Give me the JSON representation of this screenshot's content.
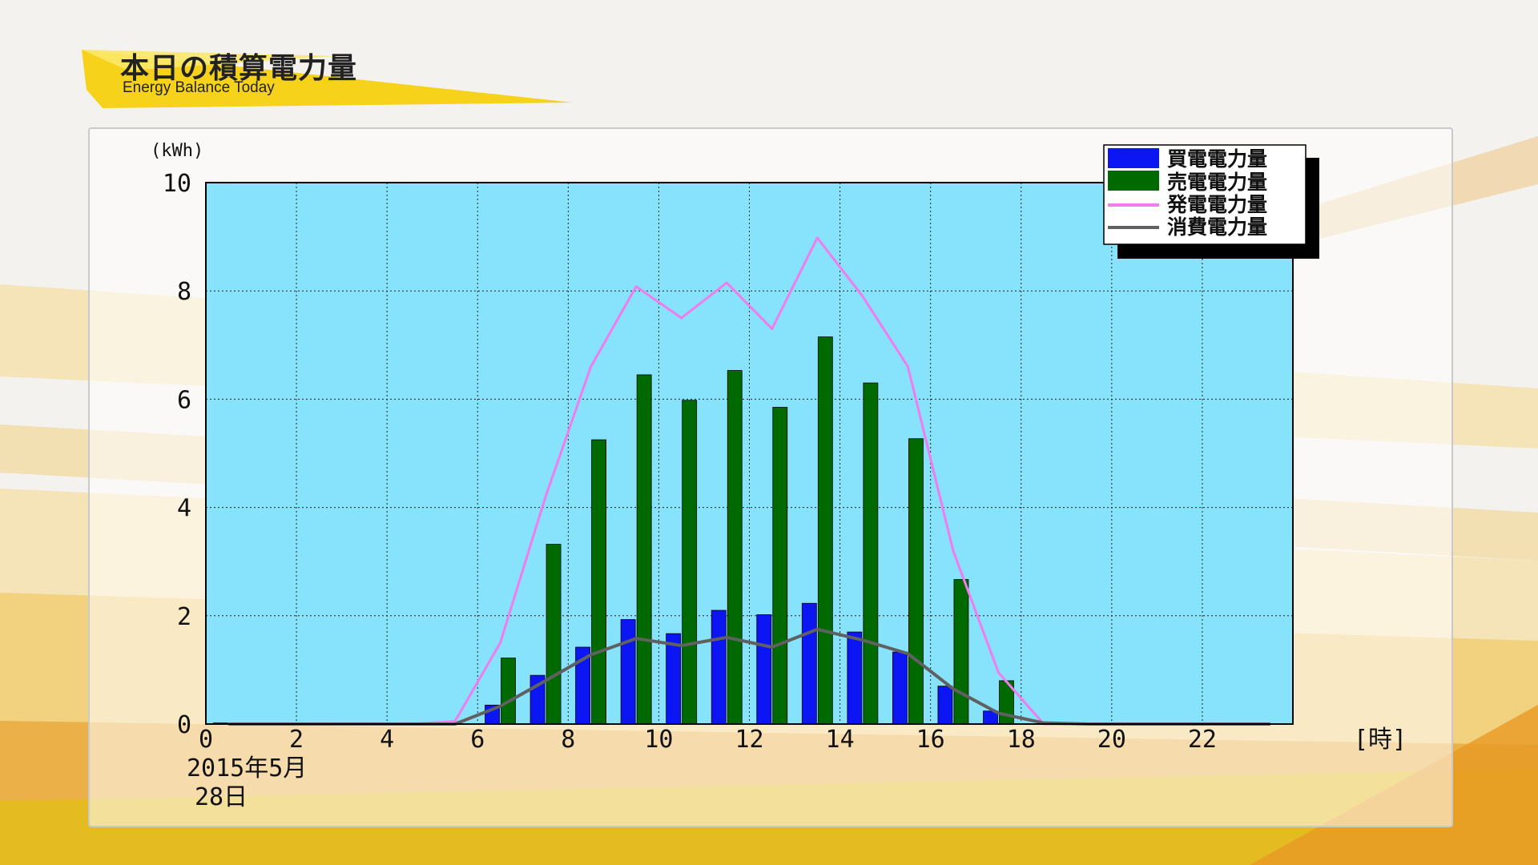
{
  "header": {
    "title": "本日の積算電力量",
    "subtitle": "Energy Balance Today"
  },
  "colors": {
    "plot_bg": "#87e2fb",
    "buy": "#0b16f3",
    "sell": "#006a00",
    "generation": "#f07cf0",
    "consumption": "#606060",
    "accent_yellow": "#f7d21a",
    "accent_orange": "#e9a23b"
  },
  "chart_data": {
    "type": "bar",
    "title": "本日の積算電力量",
    "unit_label": "(kWh)",
    "xlabel": "[時]",
    "date_line1": "2015年5月",
    "date_line2": "28日",
    "ylim": [
      0,
      10
    ],
    "xlim": [
      0,
      24
    ],
    "yticks": [
      0,
      2,
      4,
      6,
      8,
      10
    ],
    "xticks": [
      0,
      2,
      4,
      6,
      8,
      10,
      12,
      14,
      16,
      18,
      20,
      22
    ],
    "grid": true,
    "legend_position": "top-right",
    "x": [
      0,
      1,
      2,
      3,
      4,
      5,
      6,
      7,
      8,
      9,
      10,
      11,
      12,
      13,
      14,
      15,
      16,
      17,
      18,
      19,
      20,
      21,
      22,
      23
    ],
    "series": [
      {
        "name": "買電電力量",
        "kind": "bar",
        "color_key": "buy",
        "values": [
          0.02,
          0,
          0,
          0,
          0,
          0,
          0.35,
          0.9,
          1.42,
          1.93,
          1.67,
          2.1,
          2.02,
          2.23,
          1.7,
          1.33,
          0.7,
          0.24,
          0,
          0,
          0,
          0,
          0,
          0
        ]
      },
      {
        "name": "売電電力量",
        "kind": "bar",
        "color_key": "sell",
        "values": [
          0,
          0,
          0,
          0,
          0,
          0,
          1.22,
          3.32,
          5.25,
          6.45,
          5.98,
          6.53,
          5.85,
          7.15,
          6.3,
          5.27,
          2.67,
          0.8,
          0,
          0,
          0,
          0,
          0,
          0
        ]
      },
      {
        "name": "発電電力量",
        "kind": "line",
        "color_key": "generation",
        "values": [
          0,
          0,
          0,
          0,
          0,
          0.05,
          1.5,
          4.2,
          6.6,
          8.08,
          7.5,
          8.15,
          7.3,
          8.98,
          7.9,
          6.6,
          3.2,
          0.95,
          0,
          0,
          0,
          0,
          0,
          0
        ]
      },
      {
        "name": "消費電力量",
        "kind": "line",
        "color_key": "consumption",
        "values": [
          0,
          0,
          0,
          0,
          0,
          0,
          0.33,
          0.8,
          1.28,
          1.58,
          1.45,
          1.6,
          1.42,
          1.75,
          1.55,
          1.3,
          0.65,
          0.2,
          0.02,
          0,
          0,
          0,
          0,
          0
        ]
      }
    ]
  }
}
